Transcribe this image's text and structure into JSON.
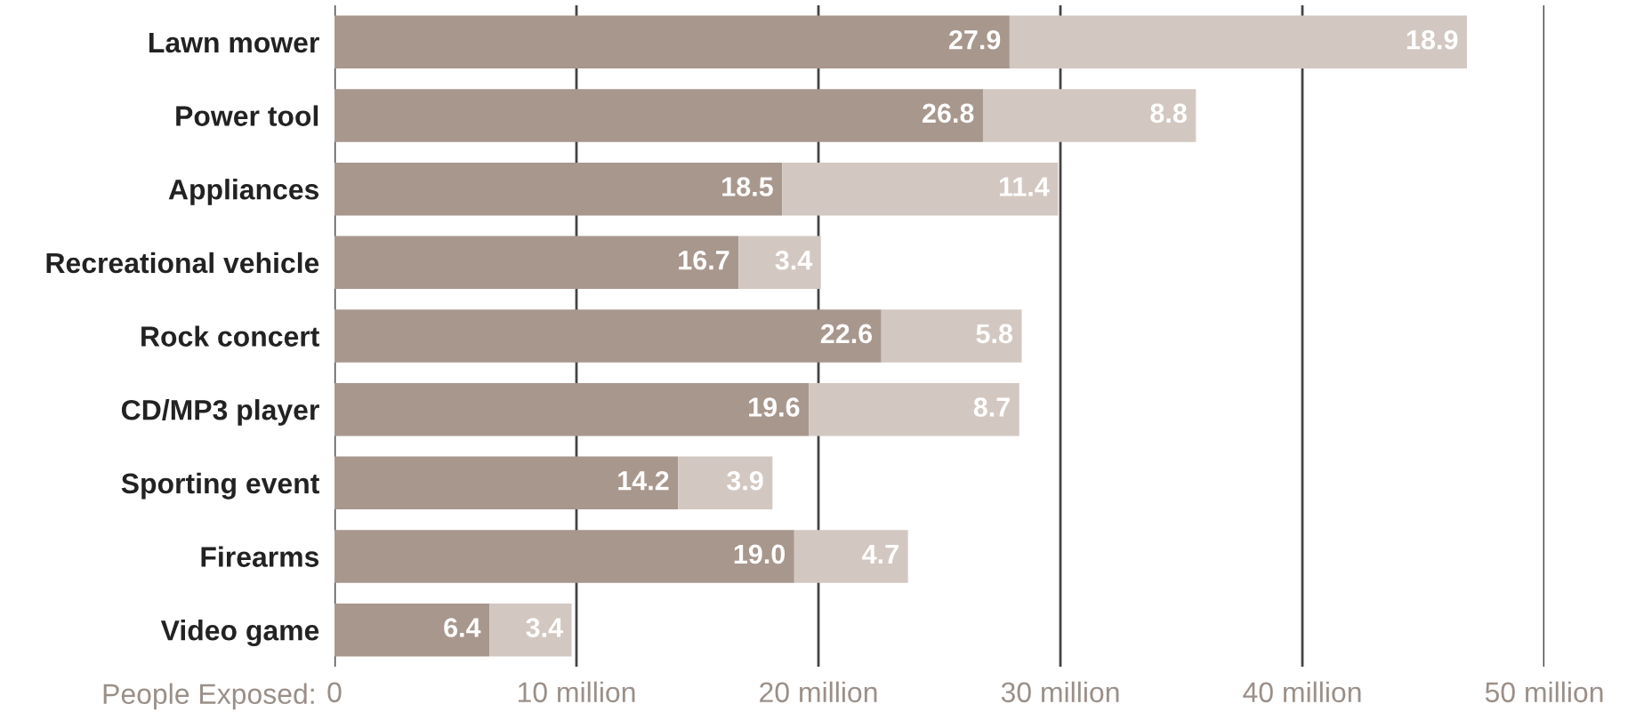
{
  "chart_data": {
    "type": "bar",
    "orientation": "horizontal",
    "stacked": true,
    "xlabel": "People Exposed:",
    "categories": [
      "Lawn mower",
      "Power tool",
      "Appliances",
      "Recreational vehicle",
      "Rock concert",
      "CD/MP3 player",
      "Sporting event",
      "Firearms",
      "Video game"
    ],
    "series": [
      {
        "color": "#a8978d",
        "values": [
          27.9,
          26.8,
          18.5,
          16.7,
          22.6,
          19.6,
          14.2,
          19.0,
          6.4
        ]
      },
      {
        "color": "#d3c8c1",
        "values": [
          18.9,
          8.8,
          11.4,
          3.4,
          5.8,
          8.7,
          3.9,
          4.7,
          3.4
        ]
      }
    ],
    "value_labels": [
      [
        "27.9",
        "26.8",
        "18.5",
        "16.7",
        "22.6",
        "19.6",
        "14.2",
        "19.0",
        "6.4"
      ],
      [
        "18.9",
        "8.8",
        "11.4",
        "3.4",
        "5.8",
        "8.7",
        "3.9",
        "4.7",
        "3.4"
      ]
    ],
    "xlim": [
      0,
      50
    ],
    "xticks": [
      0,
      {
        "value": 10,
        "label": "10 million"
      },
      {
        "value": 20,
        "label": "20 million"
      },
      {
        "value": 30,
        "label": "30 million"
      },
      {
        "value": 40,
        "label": "40 million"
      },
      {
        "value": 50,
        "label": "50 million"
      }
    ],
    "grid": "x",
    "legend": false
  }
}
